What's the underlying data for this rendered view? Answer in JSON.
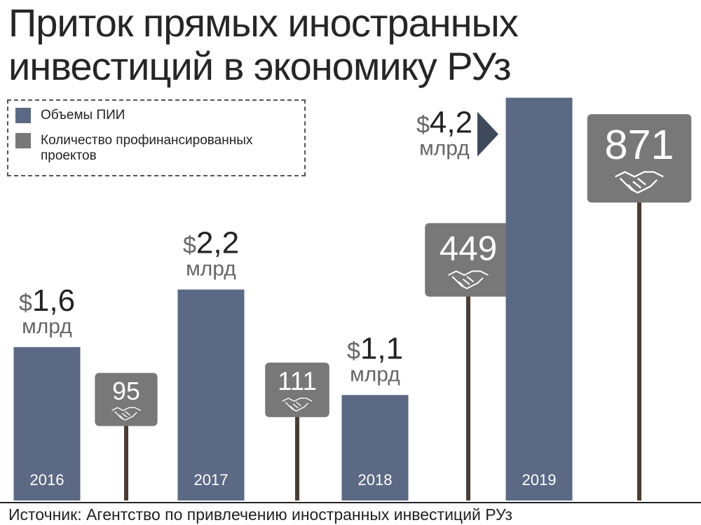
{
  "chart_data": {
    "type": "bar",
    "title": "Приток прямых иностранных инвестиций в экономику РУз",
    "categories": [
      "2016",
      "2017",
      "2018",
      "2019"
    ],
    "series": [
      {
        "name": "Объемы ПИИ",
        "color": "#5b6985",
        "values": [
          1.6,
          2.2,
          1.1,
          4.2
        ],
        "value_labels": [
          "1,6",
          "2,2",
          "1,1",
          "4,2"
        ],
        "value_prefix": "$",
        "value_unit": "млрд"
      },
      {
        "name": "Количество профинансированных проектов",
        "color": "#787878",
        "pole_color": "#4a3d35",
        "values": [
          95,
          111,
          449,
          871
        ]
      }
    ],
    "source": "Источник: Агентство по привлечению иностранных инвестиций РУз"
  }
}
